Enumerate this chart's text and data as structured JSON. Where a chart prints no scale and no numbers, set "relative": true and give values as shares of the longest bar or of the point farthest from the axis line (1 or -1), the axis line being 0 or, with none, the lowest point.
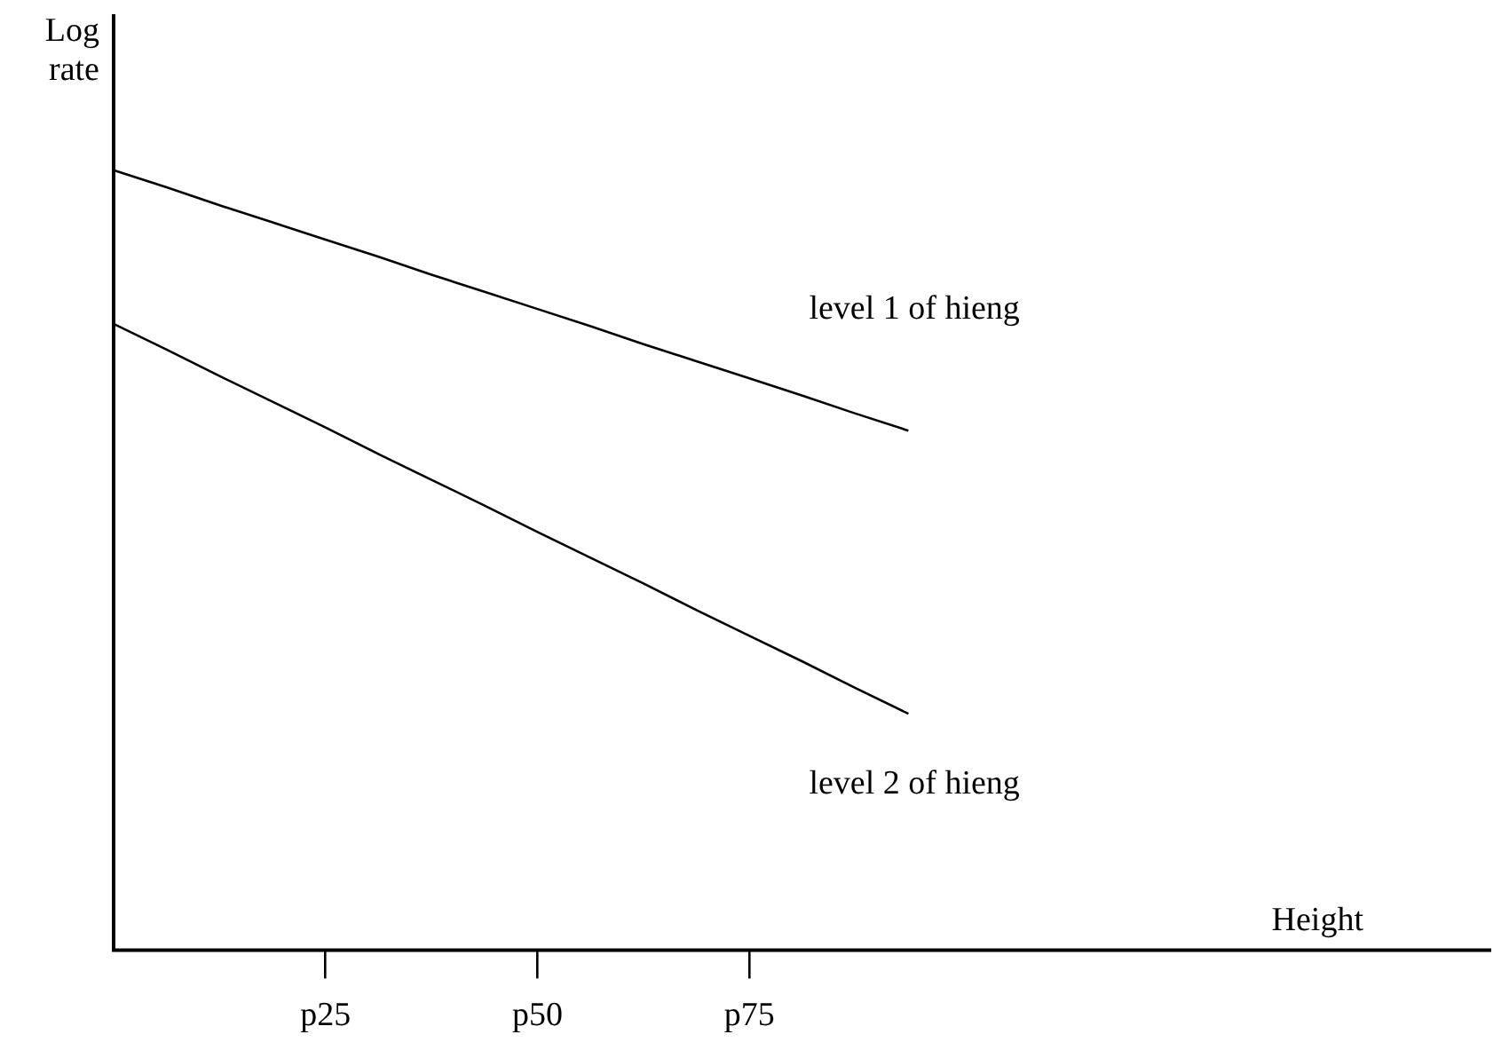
{
  "chart_data": {
    "type": "line",
    "relative": true,
    "xlabel": "Height",
    "ylabel": "Log rate",
    "categories": [
      null,
      null,
      null,
      null,
      "p25",
      null,
      null,
      null,
      "p50",
      null,
      null,
      null,
      "p75",
      null,
      null,
      null,
      null,
      null,
      null,
      null,
      null,
      null,
      null,
      null,
      null,
      null,
      null
    ],
    "legend": false,
    "grid": false,
    "marker": "none",
    "line_style": "solid",
    "series": [
      {
        "name": "level 1 of hieng",
        "color": "#000000",
        "values": [
          1,
          0.978,
          0.955,
          0.933,
          0.911,
          0.889,
          0.866,
          0.844,
          0.822,
          0.8,
          0.777,
          0.755,
          0.733,
          0.711,
          0.688,
          0.666,
          null,
          null,
          null,
          null,
          null,
          null,
          null,
          null,
          null,
          null,
          null
        ]
      },
      {
        "name": "level 2 of hieng",
        "color": "#000000",
        "values": [
          0.803,
          0.77,
          0.736,
          0.703,
          0.67,
          0.636,
          0.603,
          0.57,
          0.536,
          0.503,
          0.47,
          0.436,
          0.403,
          0.37,
          0.336,
          0.303,
          null,
          null,
          null,
          null,
          null,
          null,
          null,
          null,
          null,
          null,
          null
        ]
      }
    ]
  }
}
